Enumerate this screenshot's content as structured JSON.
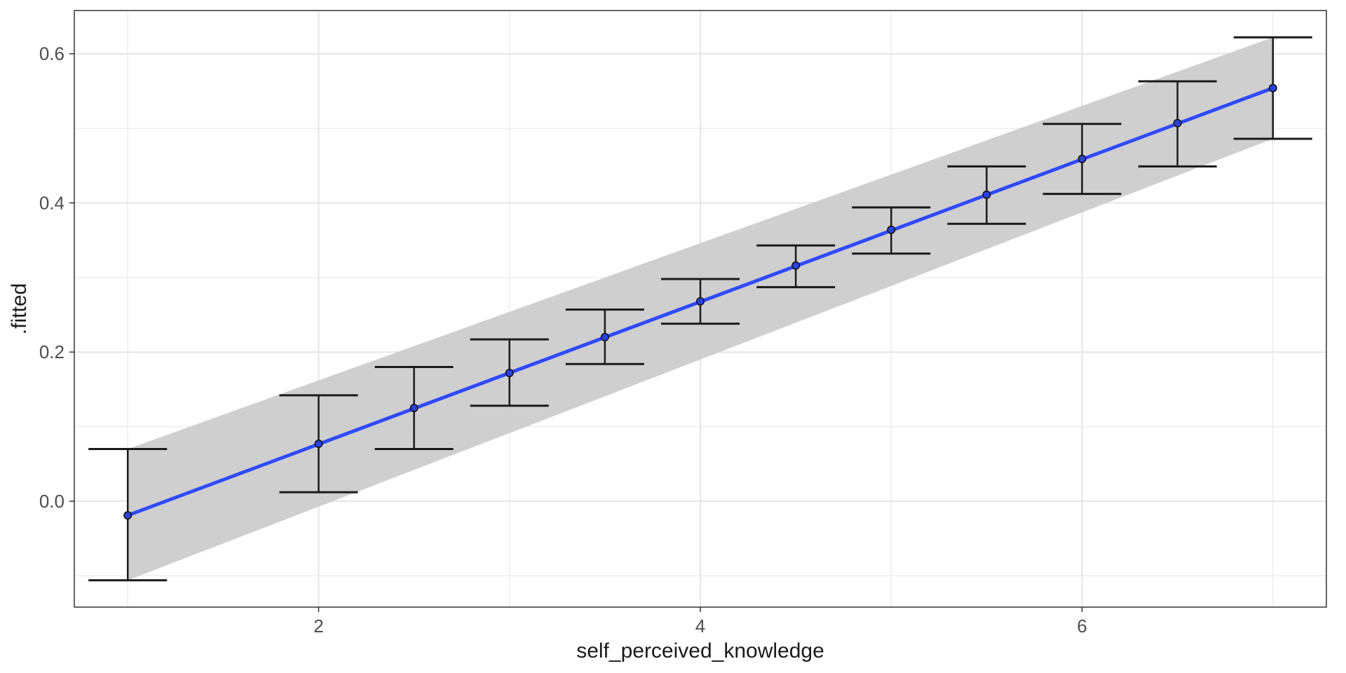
{
  "chart_data": {
    "type": "line",
    "title": "",
    "xlabel": "self_perceived_knowledge",
    "ylabel": ".fitted",
    "xlim": [
      0.72,
      7.28
    ],
    "ylim": [
      -0.142,
      0.658
    ],
    "x_ticks": [
      2,
      4,
      6
    ],
    "x_tick_labels": [
      "2",
      "4",
      "6"
    ],
    "x_minor_ticks": [
      1,
      3,
      5,
      7
    ],
    "y_ticks": [
      0.0,
      0.2,
      0.4,
      0.6
    ],
    "y_tick_labels": [
      "0.0",
      "0.2",
      "0.4",
      "0.6"
    ],
    "y_minor_ticks": [
      -0.1,
      0.1,
      0.3,
      0.5
    ],
    "grid": true,
    "series": [
      {
        "x": [
          1,
          2,
          2.5,
          3,
          3.5,
          4,
          4.5,
          5,
          5.5,
          6,
          6.5,
          7
        ],
        "y": [
          -0.019,
          0.077,
          0.125,
          0.172,
          0.22,
          0.268,
          0.316,
          0.364,
          0.411,
          0.459,
          0.507,
          0.554
        ],
        "ymin": [
          -0.106,
          0.012,
          0.07,
          0.128,
          0.184,
          0.238,
          0.287,
          0.332,
          0.372,
          0.412,
          0.449,
          0.486
        ],
        "ymax": [
          0.07,
          0.142,
          0.18,
          0.217,
          0.257,
          0.298,
          0.343,
          0.394,
          0.449,
          0.506,
          0.563,
          0.622
        ]
      }
    ],
    "fit_line": {
      "x": [
        1,
        7
      ],
      "y": [
        -0.019,
        0.554
      ],
      "ci_lower": [
        -0.106,
        0.486
      ],
      "ci_upper": [
        0.07,
        0.622
      ]
    },
    "colors": {
      "line": "#2f4bff",
      "ribbon": "#cccccc",
      "errorbar": "#1a1a1a",
      "point": "#111111",
      "grid": "#e5e5e5",
      "panel_border": "#333333"
    }
  }
}
